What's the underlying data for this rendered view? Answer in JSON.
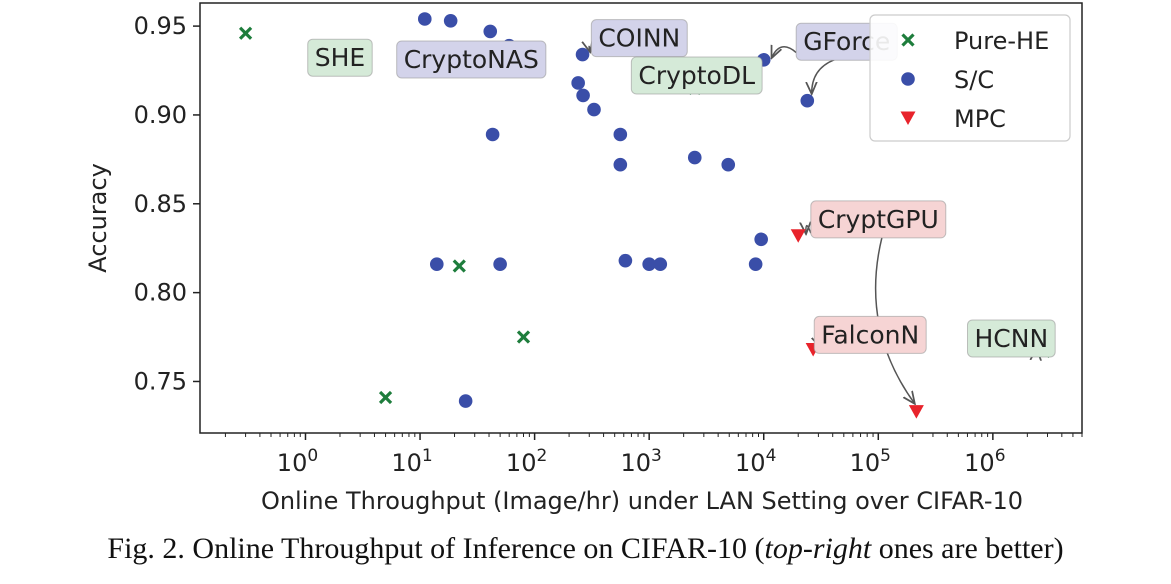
{
  "chart_data": {
    "type": "scatter",
    "xlabel": "Online Throughput (Image/hr) under LAN Setting over CIFAR-10",
    "ylabel": "Accuracy",
    "xscale": "log",
    "xlim": [
      0.12,
      6000000
    ],
    "ylim": [
      0.721,
      0.963
    ],
    "xticks": [
      {
        "value": 1,
        "base": "10",
        "exp": "0"
      },
      {
        "value": 10,
        "base": "10",
        "exp": "1"
      },
      {
        "value": 100,
        "base": "10",
        "exp": "2"
      },
      {
        "value": 1000,
        "base": "10",
        "exp": "3"
      },
      {
        "value": 10000,
        "base": "10",
        "exp": "4"
      },
      {
        "value": 100000,
        "base": "10",
        "exp": "5"
      },
      {
        "value": 1000000,
        "base": "10",
        "exp": "6"
      }
    ],
    "yticks": [
      {
        "value": 0.75,
        "label": "0.75"
      },
      {
        "value": 0.8,
        "label": "0.80"
      },
      {
        "value": 0.85,
        "label": "0.85"
      },
      {
        "value": 0.9,
        "label": "0.90"
      },
      {
        "value": 0.95,
        "label": "0.95"
      }
    ],
    "grid": false,
    "legend_position": "top-right",
    "series": [
      {
        "name": "Pure-HE",
        "marker": "x",
        "color": "#1e7d3c",
        "points": [
          {
            "x": 0.3,
            "y": 0.946
          },
          {
            "x": 1.6,
            "y": 0.926
          },
          {
            "x": 22,
            "y": 0.815
          },
          {
            "x": 80,
            "y": 0.775
          },
          {
            "x": 5,
            "y": 0.741
          },
          {
            "x": 2500,
            "y": 0.915
          },
          {
            "x": 2800000,
            "y": 0.767
          }
        ]
      },
      {
        "name": "S/C",
        "marker": "circle",
        "color": "#3a4ea8",
        "points": [
          {
            "x": 11,
            "y": 0.954
          },
          {
            "x": 18.5,
            "y": 0.953
          },
          {
            "x": 41,
            "y": 0.947
          },
          {
            "x": 60,
            "y": 0.939
          },
          {
            "x": 262,
            "y": 0.934
          },
          {
            "x": 10000,
            "y": 0.931
          },
          {
            "x": 240,
            "y": 0.918
          },
          {
            "x": 265,
            "y": 0.911
          },
          {
            "x": 330,
            "y": 0.903
          },
          {
            "x": 24000,
            "y": 0.908
          },
          {
            "x": 43,
            "y": 0.889
          },
          {
            "x": 560,
            "y": 0.889
          },
          {
            "x": 2500,
            "y": 0.876
          },
          {
            "x": 560,
            "y": 0.872
          },
          {
            "x": 4900,
            "y": 0.872
          },
          {
            "x": 9500,
            "y": 0.83
          },
          {
            "x": 14,
            "y": 0.816
          },
          {
            "x": 50,
            "y": 0.816
          },
          {
            "x": 620,
            "y": 0.818
          },
          {
            "x": 1000,
            "y": 0.816
          },
          {
            "x": 1250,
            "y": 0.816
          },
          {
            "x": 8500,
            "y": 0.816
          },
          {
            "x": 25,
            "y": 0.739
          }
        ]
      },
      {
        "name": "MPC",
        "marker": "triangle-down",
        "color": "#e8232b",
        "points": [
          {
            "x": 20000,
            "y": 0.832
          },
          {
            "x": 27000,
            "y": 0.768
          },
          {
            "x": 215000,
            "y": 0.733
          }
        ]
      }
    ],
    "annotations": [
      {
        "text": "SHE",
        "style": "green",
        "box_x": 2.0,
        "box_y": 0.9325,
        "targets": [
          {
            "x": 1.6,
            "y": 0.926
          }
        ]
      },
      {
        "text": "CryptoNAS",
        "style": "purple",
        "box_x": 28,
        "box_y": 0.9315,
        "targets": [
          {
            "x": 60,
            "y": 0.939
          }
        ]
      },
      {
        "text": "COINN",
        "style": "purple",
        "box_x": 820,
        "box_y": 0.9435,
        "targets": [
          {
            "x": 262,
            "y": 0.934
          }
        ]
      },
      {
        "text": "CryptoDL",
        "style": "green",
        "box_x": 2600,
        "box_y": 0.9225,
        "targets": [
          {
            "x": 2500,
            "y": 0.915
          }
        ]
      },
      {
        "text": "GForce",
        "style": "purple",
        "box_x": 53000,
        "box_y": 0.9415,
        "targets": [
          {
            "x": 10000,
            "y": 0.931
          },
          {
            "x": 24000,
            "y": 0.908
          }
        ]
      },
      {
        "text": "CryptGPU",
        "style": "red",
        "box_x": 100000,
        "box_y": 0.8415,
        "targets": [
          {
            "x": 20000,
            "y": 0.832
          },
          {
            "x": 215000,
            "y": 0.733
          }
        ]
      },
      {
        "text": "FalconN",
        "style": "red",
        "box_x": 85000,
        "box_y": 0.7765,
        "targets": [
          {
            "x": 27000,
            "y": 0.768
          }
        ]
      },
      {
        "text": "HCNN",
        "style": "green",
        "box_x": 1450000,
        "box_y": 0.7745,
        "targets": [
          {
            "x": 2800000,
            "y": 0.767
          }
        ]
      }
    ],
    "annotation_colors": {
      "green": "#d5ead8",
      "purple": "#d3d3ea",
      "red": "#f6d4d4"
    }
  },
  "caption": {
    "prefix": "Fig. 2.  Online Throughput of Inference on CIFAR-10 (",
    "emphasis": "top-right",
    "suffix": " ones are better)"
  }
}
